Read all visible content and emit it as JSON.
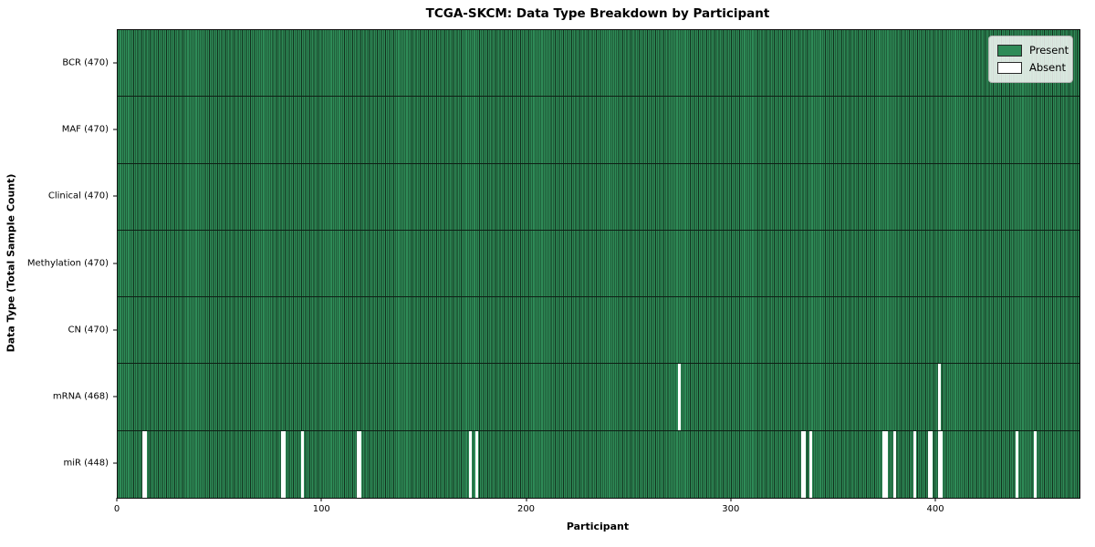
{
  "chart_data": {
    "type": "heatmap",
    "title": "TCGA-SKCM: Data Type Breakdown by Participant",
    "xlabel": "Participant",
    "ylabel": "Data Type (Total Sample Count)",
    "n_participants": 470,
    "x_ticks": [
      0,
      100,
      200,
      300,
      400
    ],
    "grid": false,
    "legend_position": "upper right",
    "legend": [
      {
        "label": "Present",
        "color": "#2e8b57"
      },
      {
        "label": "Absent",
        "color": "#ffffff"
      }
    ],
    "rows": [
      {
        "label": "BCR (470)",
        "data_type": "BCR",
        "present_count": 470,
        "absent_participants": []
      },
      {
        "label": "MAF (470)",
        "data_type": "MAF",
        "present_count": 470,
        "absent_participants": []
      },
      {
        "label": "Clinical (470)",
        "data_type": "Clinical",
        "present_count": 470,
        "absent_participants": []
      },
      {
        "label": "Methylation (470)",
        "data_type": "Methylation",
        "present_count": 470,
        "absent_participants": []
      },
      {
        "label": "CN (470)",
        "data_type": "CN",
        "present_count": 470,
        "absent_participants": []
      },
      {
        "label": "mRNA (468)",
        "data_type": "mRNA",
        "present_count": 468,
        "absent_participants": [
          274,
          401
        ]
      },
      {
        "label": "miR (448)",
        "data_type": "miR",
        "present_count": 448,
        "absent_participants": [
          12,
          13,
          80,
          81,
          90,
          117,
          118,
          172,
          175,
          334,
          335,
          338,
          374,
          375,
          379,
          389,
          396,
          397,
          401,
          402,
          439,
          448
        ]
      }
    ]
  },
  "colors": {
    "present": "#2e8b57",
    "absent": "#ffffff",
    "cell_edge": "#12301d",
    "row_divider": "#0e1f15",
    "spine": "#0d0d0d",
    "background": "#ffffff"
  }
}
